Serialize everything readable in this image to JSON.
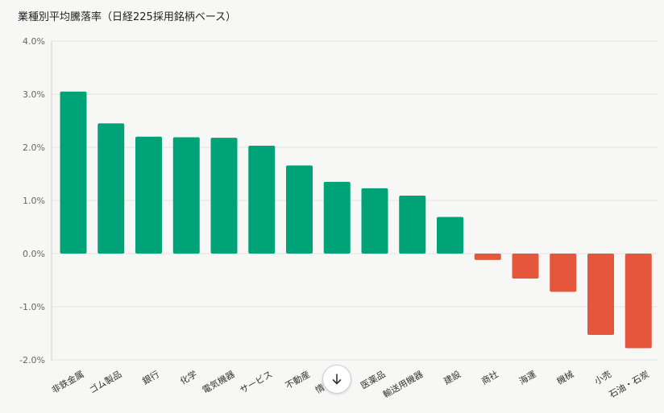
{
  "title": "業種別平均騰落率（日経225採用銘柄ベース）",
  "colors": {
    "positive": "#00a277",
    "negative": "#e5573d",
    "grid": "#e3e3e3",
    "axis": "#cccccc"
  },
  "scroll_button": {
    "icon": "arrow-down-icon"
  },
  "chart_data": {
    "type": "bar",
    "title": "業種別平均騰落率（日経225採用銘柄ベース）",
    "xlabel": "",
    "ylabel": "",
    "ylim": [
      -2.0,
      4.0
    ],
    "yticks": [
      4.0,
      3.0,
      2.0,
      1.0,
      0.0,
      -1.0,
      -2.0
    ],
    "ytick_labels": [
      "4.0%",
      "3.0%",
      "2.0%",
      "1.0%",
      "0.0%",
      "-1.0%",
      "-2.0%"
    ],
    "grid": true,
    "categories": [
      "非鉄金属",
      "ゴム製品",
      "銀行",
      "化学",
      "電気機器",
      "サービス",
      "不動産",
      "情報通信",
      "医薬品",
      "輸送用機器",
      "建設",
      "商社",
      "海運",
      "機械",
      "小売",
      "石油・石炭"
    ],
    "values": [
      3.05,
      2.45,
      2.2,
      2.19,
      2.18,
      2.03,
      1.66,
      1.35,
      1.23,
      1.09,
      0.69,
      -0.12,
      -0.47,
      -0.72,
      -1.53,
      -1.78
    ]
  }
}
